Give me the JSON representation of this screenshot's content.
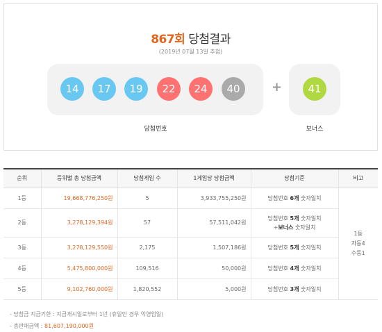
{
  "draw": {
    "round": "867회",
    "title_suffix": " 당첨결과",
    "date": "(2019년 07월 13일 추첨)",
    "numbers": [
      {
        "value": "14",
        "color": "#69c8f2"
      },
      {
        "value": "17",
        "color": "#69c8f2"
      },
      {
        "value": "19",
        "color": "#69c8f2"
      },
      {
        "value": "22",
        "color": "#ff7272"
      },
      {
        "value": "24",
        "color": "#ff7272"
      },
      {
        "value": "40",
        "color": "#aaaaaa"
      }
    ],
    "plus": "+",
    "bonus": {
      "value": "41",
      "color": "#b0d840"
    },
    "numbers_caption": "당첨번호",
    "bonus_caption": "보너스"
  },
  "table": {
    "headers": [
      "순위",
      "등위별 총 당첨금액",
      "당첨게임 수",
      "1게임당 당첨금액",
      "당첨기준",
      "비고"
    ],
    "rows": [
      {
        "rank": "1등",
        "total": "19,668,776,250원",
        "winners": "5",
        "per_game": "3,933,755,250원",
        "criteria_prefix": "당첨번호 ",
        "criteria_bold": "6개",
        "criteria_suffix": " 숫자일치",
        "criteria_line2": ""
      },
      {
        "rank": "2등",
        "total": "3,278,129,394원",
        "winners": "57",
        "per_game": "57,511,042원",
        "criteria_prefix": "당첨번호 ",
        "criteria_bold": "5개",
        "criteria_suffix": " 숫자일치",
        "criteria_line2_prefix": "+",
        "criteria_line2_bold": "보너스",
        "criteria_line2_suffix": " 숫자일치"
      },
      {
        "rank": "3등",
        "total": "3,278,129,550원",
        "winners": "2,175",
        "per_game": "1,507,186원",
        "criteria_prefix": "당첨번호 ",
        "criteria_bold": "5개",
        "criteria_suffix": " 숫자일치",
        "criteria_line2": ""
      },
      {
        "rank": "4등",
        "total": "5,475,800,000원",
        "winners": "109,516",
        "per_game": "50,000원",
        "criteria_prefix": "당첨번호 ",
        "criteria_bold": "4개",
        "criteria_suffix": " 숫자일치",
        "criteria_line2": ""
      },
      {
        "rank": "5등",
        "total": "9,102,760,000원",
        "winners": "1,820,552",
        "per_game": "5,000원",
        "criteria_prefix": "당첨번호 ",
        "criteria_bold": "3개",
        "criteria_suffix": " 숫자일치",
        "criteria_line2": ""
      }
    ],
    "remark_lines": [
      "1등",
      "자동4",
      "수동1"
    ]
  },
  "notes": {
    "deadline": "당첨금 지급기한 : 지급개시일로부터 1년 (휴일인 경우 익영업일)",
    "sales_label": "총판매금액 : ",
    "sales_value": "81,607,190,000원"
  }
}
